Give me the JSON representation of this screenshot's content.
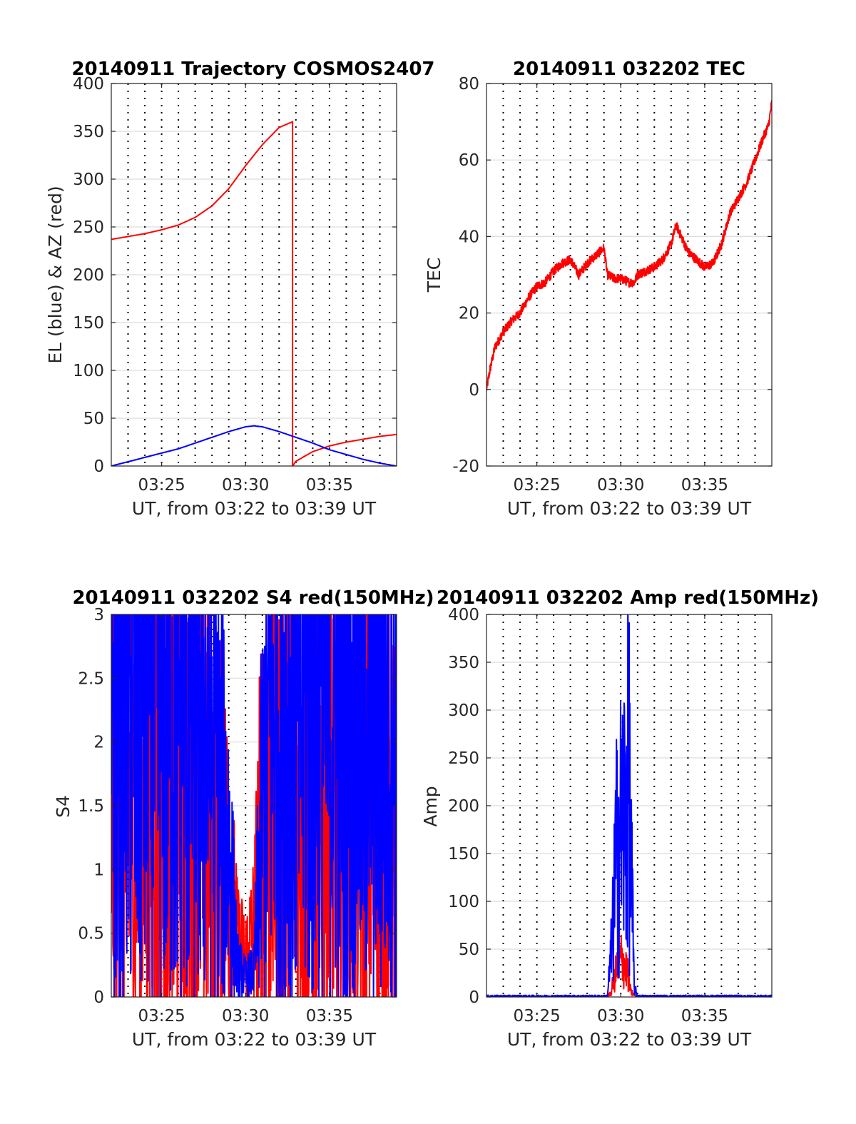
{
  "chart_data": [
    {
      "type": "line",
      "title": "20140911 Trajectory COSMOS2407",
      "xlabel": "UT, from 03:22 to 03:39 UT",
      "ylabel": "EL (blue) & AZ (red)",
      "xlim": [
        22,
        39
      ],
      "ylim": [
        0,
        400
      ],
      "xticks": [
        25,
        30,
        35
      ],
      "xtick_labels": [
        "03:25",
        "03:30",
        "03:35"
      ],
      "yticks": [
        0,
        50,
        100,
        150,
        200,
        250,
        300,
        350,
        400
      ],
      "ytick_labels": [
        "0",
        "50",
        "100",
        "150",
        "200",
        "250",
        "300",
        "350",
        "400"
      ],
      "grid": true,
      "series": [
        {
          "color": "#ff0000",
          "noise": 0,
          "spread": 0,
          "x": [
            22,
            23,
            24,
            25,
            26,
            27,
            28,
            29,
            30,
            31,
            32,
            32.8,
            32.8,
            33,
            34,
            35,
            36,
            37,
            38,
            39
          ],
          "y": [
            237,
            240,
            243,
            247,
            252,
            260,
            272,
            290,
            314,
            336,
            354,
            360,
            0,
            5,
            15,
            21,
            25,
            28,
            31,
            33
          ]
        },
        {
          "color": "#0000ff",
          "noise": 0,
          "spread": 0,
          "x": [
            22,
            24,
            26,
            28,
            29,
            30,
            30.5,
            31,
            32,
            33,
            34,
            35,
            36,
            37,
            38,
            39
          ],
          "y": [
            0,
            9,
            18,
            30,
            36,
            41,
            42,
            41,
            36,
            30,
            24,
            17,
            12,
            7,
            3,
            0
          ]
        }
      ]
    },
    {
      "type": "line",
      "title": "20140911 032202 TEC",
      "xlabel": "UT, from 03:22 to 03:39 UT",
      "ylabel": "TEC",
      "xlim": [
        22,
        39
      ],
      "ylim": [
        -20,
        80
      ],
      "xticks": [
        25,
        30,
        35
      ],
      "xtick_labels": [
        "03:25",
        "03:30",
        "03:35"
      ],
      "yticks": [
        -20,
        0,
        20,
        40,
        60,
        80
      ],
      "ytick_labels": [
        "-20",
        "0",
        "20",
        "40",
        "60",
        "80"
      ],
      "grid": true,
      "series": [
        {
          "color": "#ff0000",
          "noise": 1.2,
          "spread": 0,
          "x": [
            22,
            22.2,
            22.5,
            23,
            23.5,
            24,
            24.5,
            25,
            25.5,
            26,
            26.5,
            27,
            27.5,
            28,
            28.5,
            29,
            29.2,
            29.6,
            30,
            30.5,
            30.8,
            31,
            31.5,
            32,
            32.5,
            33,
            33.3,
            33.6,
            34,
            34.5,
            35,
            35.5,
            36,
            36.5,
            37,
            37.5,
            38,
            38.5,
            38.8,
            39
          ],
          "y": [
            0,
            5,
            11,
            15,
            18,
            20,
            24,
            27,
            28,
            31,
            33,
            34,
            30,
            33,
            35,
            37,
            30,
            29,
            29,
            28,
            28,
            30,
            31,
            32,
            34,
            38,
            43,
            40,
            36,
            34,
            32,
            33,
            38,
            46,
            50,
            54,
            60,
            66,
            69,
            75
          ]
        }
      ]
    },
    {
      "type": "line",
      "title": "20140911 032202 S4 red(150MHz)",
      "xlabel": "UT, from 03:22 to 03:39 UT",
      "ylabel": "S4",
      "xlim": [
        22,
        39
      ],
      "ylim": [
        0,
        3
      ],
      "xticks": [
        25,
        30,
        35
      ],
      "xtick_labels": [
        "03:25",
        "03:30",
        "03:35"
      ],
      "yticks": [
        0,
        0.5,
        1,
        1.5,
        2,
        2.5,
        3
      ],
      "ytick_labels": [
        "0",
        "0.5",
        "1",
        "1.5",
        "2",
        "2.5",
        "3"
      ],
      "grid": true,
      "series": [
        {
          "color": "#ff0000",
          "noise": 0,
          "spread": 1.4,
          "x": [
            22,
            23,
            24,
            25,
            26,
            27,
            28,
            29,
            29.5,
            30,
            30.5,
            31,
            31.5,
            32,
            33,
            34,
            35,
            36,
            37,
            38,
            39
          ],
          "y": [
            1.5,
            1.4,
            1.5,
            1.6,
            1.4,
            1.5,
            1.4,
            1.0,
            0.4,
            0.3,
            0.5,
            1.4,
            1.6,
            1.5,
            1.5,
            1.4,
            1.5,
            1.4,
            1.5,
            1.5,
            1.3
          ]
        },
        {
          "color": "#0000ff",
          "noise": 0,
          "spread": 1.1,
          "x": [
            22,
            23,
            24,
            25,
            26,
            27,
            28,
            29,
            29.5,
            30,
            30.5,
            31,
            31.5,
            32,
            33,
            34,
            35,
            36,
            37,
            38,
            39
          ],
          "y": [
            2.2,
            2.4,
            2.3,
            2.2,
            2.3,
            2.4,
            2.0,
            1.2,
            0.25,
            0.15,
            0.2,
            1.5,
            2.2,
            2.3,
            2.2,
            2.4,
            2.3,
            2.1,
            2.2,
            2.3,
            2.2
          ]
        }
      ]
    },
    {
      "type": "line",
      "title": "20140911 032202 Amp red(150MHz)",
      "xlabel": "UT, from 03:22 to 03:39 UT",
      "ylabel": "Amp",
      "xlim": [
        22,
        39
      ],
      "ylim": [
        0,
        400
      ],
      "xticks": [
        25,
        30,
        35
      ],
      "xtick_labels": [
        "03:25",
        "03:30",
        "03:35"
      ],
      "yticks": [
        0,
        50,
        100,
        150,
        200,
        250,
        300,
        350,
        400
      ],
      "ytick_labels": [
        "0",
        "50",
        "100",
        "150",
        "200",
        "250",
        "300",
        "350",
        "400"
      ],
      "grid": true,
      "series": [
        {
          "color": "#ff0000",
          "noise": 0,
          "spread": 0.8,
          "x": [
            22,
            29,
            29.4,
            29.6,
            29.8,
            30,
            30.2,
            30.4,
            30.6,
            31,
            39
          ],
          "y": [
            0,
            0,
            3,
            20,
            30,
            40,
            35,
            25,
            5,
            0,
            0
          ]
        },
        {
          "color": "#0000ff",
          "noise": 0,
          "spread": 0.9,
          "x": [
            22,
            29.2,
            29.5,
            29.7,
            29.9,
            30.1,
            30.3,
            30.45,
            30.6,
            30.8,
            31,
            39
          ],
          "y": [
            1,
            1,
            60,
            140,
            170,
            180,
            200,
            250,
            150,
            10,
            1,
            1
          ]
        }
      ]
    }
  ]
}
